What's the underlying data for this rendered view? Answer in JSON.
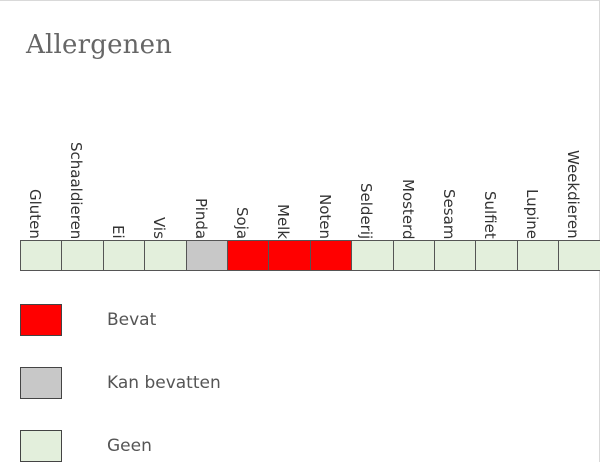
{
  "title": "Allergenen",
  "colors": {
    "bevat": "#ff0000",
    "kan_bevatten": "#c8c8c8",
    "geen": "#e3efdc",
    "cell_border": "#555555"
  },
  "allergens": [
    {
      "label": "Gluten",
      "status": "geen"
    },
    {
      "label": "Schaaldieren",
      "status": "geen"
    },
    {
      "label": "Ei",
      "status": "geen"
    },
    {
      "label": "Vis",
      "status": "geen"
    },
    {
      "label": "Pinda",
      "status": "kan_bevatten"
    },
    {
      "label": "Soja",
      "status": "bevat"
    },
    {
      "label": "Melk",
      "status": "bevat"
    },
    {
      "label": "Noten",
      "status": "bevat"
    },
    {
      "label": "Selderij",
      "status": "geen"
    },
    {
      "label": "Mosterd",
      "status": "geen"
    },
    {
      "label": "Sesam",
      "status": "geen"
    },
    {
      "label": "Sulfiet",
      "status": "geen"
    },
    {
      "label": "Lupine",
      "status": "geen"
    },
    {
      "label": "Weekdieren",
      "status": "geen"
    }
  ],
  "legend": [
    {
      "key": "bevat",
      "label": "Bevat"
    },
    {
      "key": "kan_bevatten",
      "label": "Kan bevatten"
    },
    {
      "key": "geen",
      "label": "Geen"
    }
  ]
}
